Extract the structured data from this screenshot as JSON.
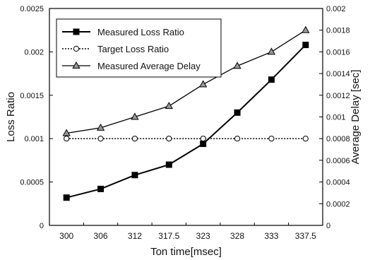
{
  "chart_data": {
    "type": "line",
    "title": "",
    "categories": [
      "300",
      "306",
      "312",
      "317.5",
      "323",
      "328",
      "333",
      "337.5"
    ],
    "xlabel": "Ton time[msec]",
    "ylabel": "Loss Ratio",
    "y2label": "Average Delay [sec]",
    "ylim": [
      0,
      0.0025
    ],
    "y2lim": [
      0,
      0.002
    ],
    "yticks": [
      "0",
      "0.0005",
      "0.001",
      "0.0015",
      "0.002",
      "0.0025"
    ],
    "y2ticks": [
      "0",
      "0.0002",
      "0.0004",
      "0.0006",
      "0.0008",
      "0.001",
      "0.0012",
      "0.0014",
      "0.0016",
      "0.0018",
      "0.002"
    ],
    "grid": false,
    "legend_position": "top-left",
    "series": [
      {
        "name": "Measured Loss Ratio",
        "axis": "left",
        "marker": "square",
        "line": "solid",
        "values": [
          0.00032,
          0.00042,
          0.00058,
          0.0007,
          0.00094,
          0.0013,
          0.00168,
          0.00208
        ]
      },
      {
        "name": "Target Loss Ratio",
        "axis": "left",
        "marker": "circle",
        "line": "dotted",
        "values": [
          0.001,
          0.001,
          0.001,
          0.001,
          0.001,
          0.001,
          0.001,
          0.001
        ]
      },
      {
        "name": "Measured Average Delay",
        "axis": "right",
        "marker": "triangle",
        "line": "solid",
        "values": [
          0.00085,
          0.0009,
          0.001,
          0.0011,
          0.0013,
          0.00147,
          0.0016,
          0.0018
        ]
      }
    ]
  }
}
